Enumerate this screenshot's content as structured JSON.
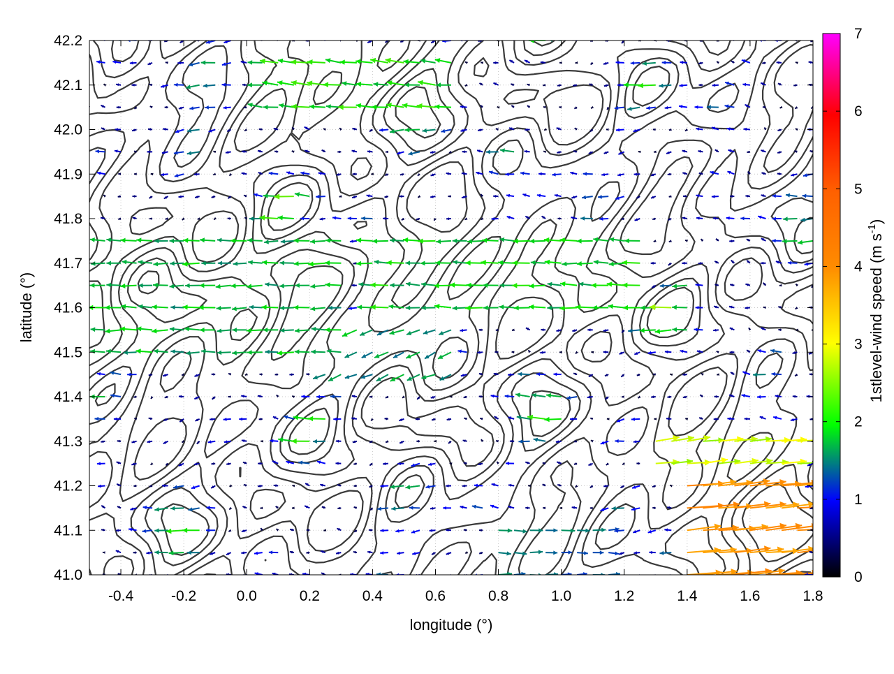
{
  "chart_data": {
    "type": "vector-field",
    "xlabel": "longitude (°)",
    "ylabel": "latitude (°)",
    "xlim": [
      -0.5,
      1.8
    ],
    "ylim": [
      41.0,
      42.2
    ],
    "xticks": [
      "-0.4",
      "-0.2",
      "0.0",
      "0.2",
      "0.4",
      "0.6",
      "0.8",
      "1.0",
      "1.2",
      "1.4",
      "1.6",
      "1.8"
    ],
    "xtick_values": [
      -0.4,
      -0.2,
      0.0,
      0.2,
      0.4,
      0.6,
      0.8,
      1.0,
      1.2,
      1.4,
      1.6,
      1.8
    ],
    "yticks": [
      "41.0",
      "41.1",
      "41.2",
      "41.3",
      "41.4",
      "41.5",
      "41.6",
      "41.7",
      "41.8",
      "41.9",
      "42.0",
      "42.1",
      "42.2"
    ],
    "ytick_values": [
      41.0,
      41.1,
      41.2,
      41.3,
      41.4,
      41.5,
      41.6,
      41.7,
      41.8,
      41.9,
      42.0,
      42.1,
      42.2
    ],
    "grid": true,
    "colorbar": {
      "label": "1stlevel-wind speed (m s",
      "label_sup": "-1",
      "label_end": ")",
      "range": [
        0,
        7
      ],
      "ticks": [
        "0",
        "1",
        "2",
        "3",
        "4",
        "5",
        "6",
        "7"
      ],
      "tick_values": [
        0,
        1,
        2,
        3,
        4,
        5,
        6,
        7
      ],
      "colors": [
        "#000000",
        "#0000ff",
        "#00ff00",
        "#ffff00",
        "#ff8c00",
        "#ff0000",
        "#ff00ff"
      ]
    },
    "grid_spacing_deg": 0.05,
    "region_wind": [
      {
        "lon": [
          -0.5,
          0.3
        ],
        "lat": [
          41.45,
          41.75
        ],
        "u": -1.8,
        "v": 0.0
      },
      {
        "lon": [
          0.35,
          1.3
        ],
        "lat": [
          41.55,
          41.75
        ],
        "u": -1.9,
        "v": 0.05
      },
      {
        "lon": [
          1.4,
          1.8
        ],
        "lat": [
          41.0,
          41.2
        ],
        "u": 4.2,
        "v": 0.4
      },
      {
        "lon": [
          1.3,
          1.8
        ],
        "lat": [
          41.2,
          41.32
        ],
        "u": 2.8,
        "v": 0.3
      },
      {
        "lon": [
          0.8,
          1.2
        ],
        "lat": [
          41.0,
          41.12
        ],
        "u": 1.4,
        "v": 0.0
      },
      {
        "lon": [
          0.2,
          0.7
        ],
        "lat": [
          41.4,
          41.55
        ],
        "u": -1.5,
        "v": -0.6
      },
      {
        "lon": [
          0.0,
          0.7
        ],
        "lat": [
          42.0,
          42.15
        ],
        "u": -2.0,
        "v": 0.2
      }
    ],
    "contour_levels": 5
  }
}
